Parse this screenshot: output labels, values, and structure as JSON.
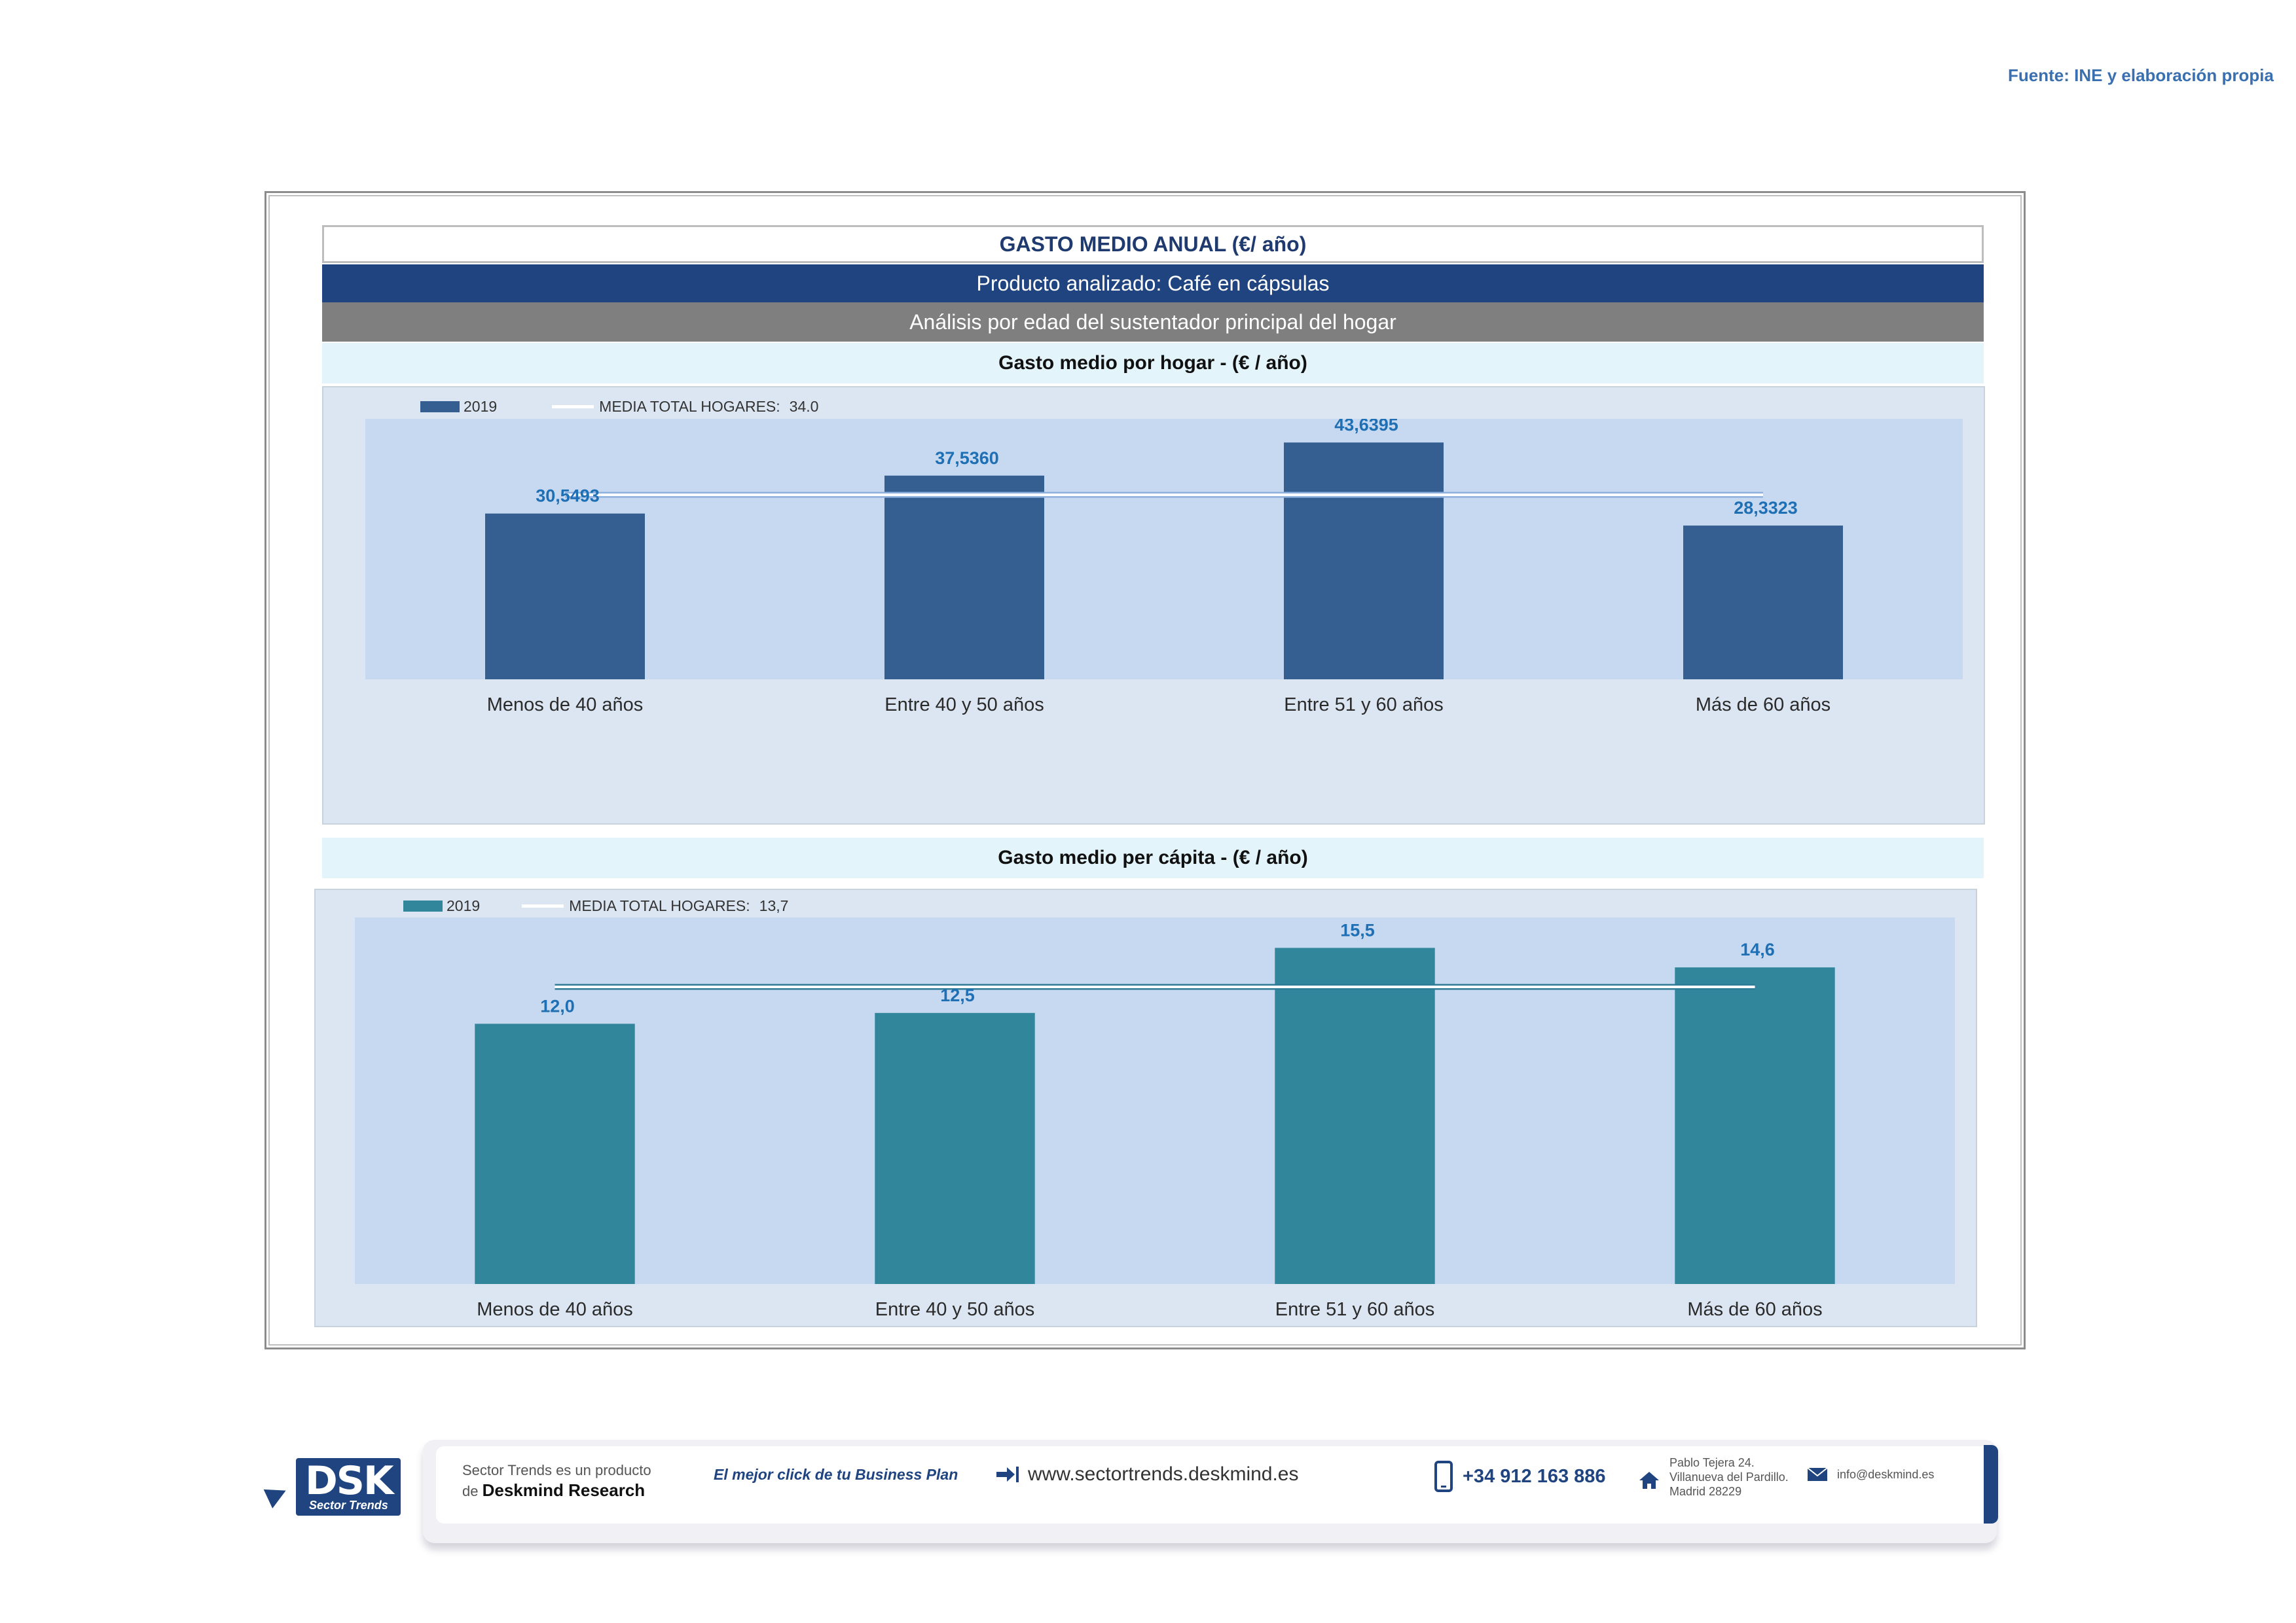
{
  "source": "Fuente: INE y elaboración propia",
  "header": {
    "title": "GASTO MEDIO ANUAL (€/ año)",
    "product": "Producto analizado: Café en cápsulas",
    "analysis": "Análisis por edad del sustentador principal del hogar"
  },
  "chart_data": [
    {
      "type": "bar",
      "title": "Gasto medio por hogar -  (€ / año)",
      "categories": [
        "Menos de 40 años",
        "Entre 40 y 50 años",
        "Entre 51  y 60 años",
        "Más de 60 años"
      ],
      "series": [
        {
          "name": "2019",
          "values": [
            30.5493,
            37.536,
            43.6395,
            28.3323
          ],
          "labels": [
            "30,5493",
            "37,5360",
            "43,6395",
            "28,3323"
          ],
          "color": "#355f91"
        }
      ],
      "reference_line": {
        "name": "MEDIA TOTAL  HOGARES:",
        "value": 34.0,
        "label": "34.0"
      },
      "ylim": [
        0,
        48
      ],
      "grid": false,
      "legend_position": "top-left"
    },
    {
      "type": "bar",
      "title": "Gasto medio per cápita -  (€ / año)",
      "categories": [
        "Menos de 40 años",
        "Entre 40 y 50 años",
        "Entre 51  y 60 años",
        "Más de 60 años"
      ],
      "series": [
        {
          "name": "2019",
          "values": [
            12.0,
            12.5,
            15.5,
            14.6
          ],
          "labels": [
            "12,0",
            "12,5",
            "15,5",
            "14,6"
          ],
          "color": "#31869b"
        }
      ],
      "reference_line": {
        "name": "MEDIA TOTAL  HOGARES:",
        "value": 13.7,
        "label": "13,7"
      },
      "ylim": [
        0,
        16.9
      ],
      "grid": false,
      "legend_position": "top-left"
    }
  ],
  "footer": {
    "logo_big": "DSK",
    "logo_small": "Sector Trends",
    "product_line1": "Sector Trends es un producto",
    "product_line2_prefix": "de",
    "product_line2_brand": "Deskmind Research",
    "slogan": "El mejor click de tu Business Plan",
    "website": "www.sectortrends.deskmind.es",
    "phone": "+34 912 163 886",
    "address_line1": "Pablo Tejera 24.",
    "address_line2": "Villanueva del Pardillo.",
    "address_line3": "Madrid 28229",
    "email": "info@deskmind.es"
  }
}
